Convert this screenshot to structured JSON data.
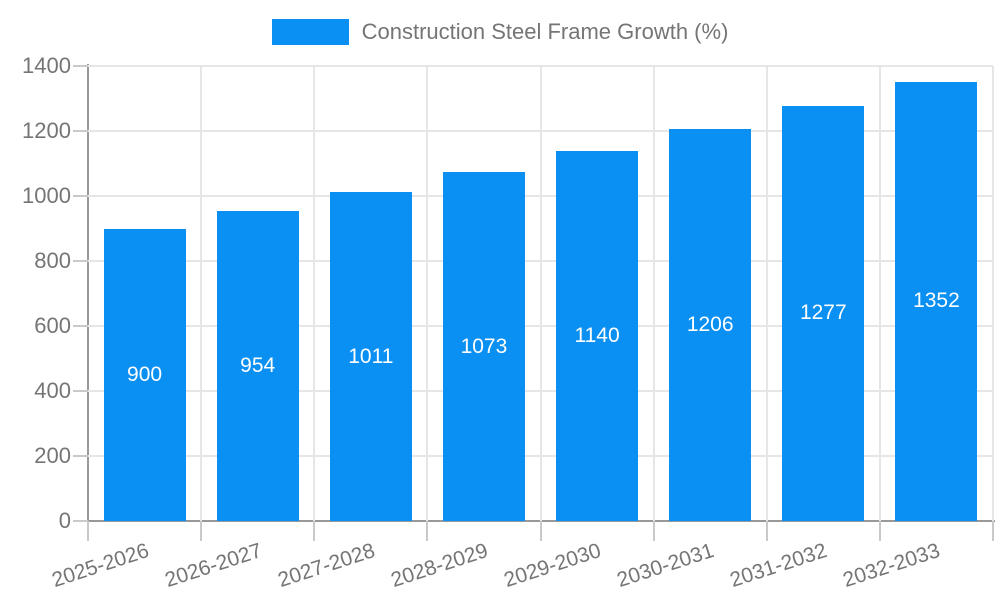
{
  "legend": {
    "label": "Construction Steel Frame Growth (%)"
  },
  "colors": {
    "bar": "#0a8ff2",
    "axis": "#999999",
    "grid": "#e6e6e6",
    "tick": "#c9c9c9",
    "label_text": "#757575",
    "value_label_text": "#ffffff",
    "background": "#ffffff"
  },
  "chart_data": {
    "type": "bar",
    "title": "Construction Steel Frame Growth (%)",
    "categories": [
      "2025-2026",
      "2026-2027",
      "2027-2028",
      "2028-2029",
      "2029-2030",
      "2030-2031",
      "2031-2032",
      "2032-2033"
    ],
    "series": [
      {
        "name": "Construction Steel Frame Growth (%)",
        "values": [
          900,
          954,
          1011,
          1073,
          1140,
          1206,
          1277,
          1352
        ]
      }
    ],
    "xlabel": "",
    "ylabel": "",
    "ylim": [
      0,
      1400
    ],
    "yticks": [
      0,
      200,
      400,
      600,
      800,
      1000,
      1200,
      1400
    ],
    "grid": true,
    "legend_position": "top-center",
    "value_labels": "inside-center",
    "x_label_rotation_deg": -18
  }
}
